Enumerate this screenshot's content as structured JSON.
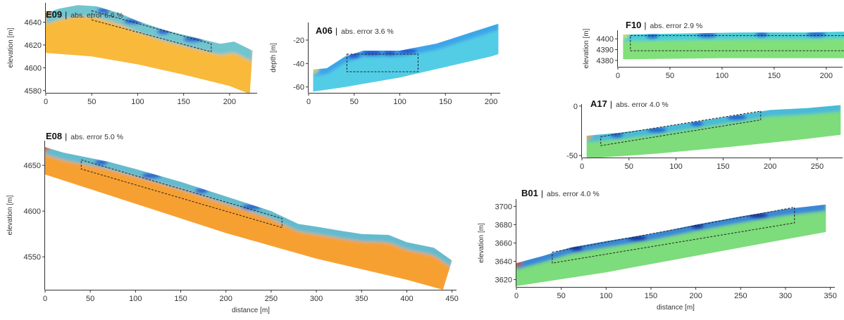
{
  "chart_data": [
    {
      "type": "heatmap",
      "panel": "E09",
      "title": "E09",
      "error_label": "abs. error 6.6 %",
      "xlabel": "",
      "ylabel": "elevation [m]",
      "xlim": [
        0,
        230
      ],
      "ylim": [
        4578,
        4657
      ],
      "xticks": [
        0,
        50,
        100,
        150,
        200
      ],
      "yticks": [
        4580,
        4600,
        4620,
        4640
      ],
      "top_profile": [
        [
          0,
          4648
        ],
        [
          15,
          4652
        ],
        [
          35,
          4655
        ],
        [
          55,
          4654
        ],
        [
          80,
          4648
        ],
        [
          100,
          4641
        ],
        [
          130,
          4633
        ],
        [
          160,
          4627
        ],
        [
          190,
          4621
        ],
        [
          205,
          4623
        ],
        [
          220,
          4617
        ],
        [
          225,
          4615
        ]
      ],
      "bottom_profile": [
        [
          0,
          4613
        ],
        [
          50,
          4610
        ],
        [
          100,
          4603
        ],
        [
          150,
          4594
        ],
        [
          200,
          4584
        ],
        [
          222,
          4577
        ]
      ],
      "target_box": {
        "x": [
          50,
          180
        ],
        "y_top": [
          4650,
          4621
        ],
        "y_bottom": [
          4642,
          4614
        ]
      },
      "colors": {
        "background": "#f9b93a",
        "surface": "#59c7ea",
        "anomaly": "#1b4fcf",
        "edge": "#f08a1c"
      }
    },
    {
      "type": "heatmap",
      "panel": "A06",
      "title": "A06",
      "error_label": "abs. error 3.6 %",
      "xlabel": "",
      "ylabel": "depth [m]",
      "xlim": [
        0,
        210
      ],
      "ylim": [
        -65,
        -5
      ],
      "xticks": [
        0,
        50,
        100,
        150,
        200
      ],
      "yticks": [
        -20,
        -40,
        -60
      ],
      "top_profile": [
        [
          5,
          -45
        ],
        [
          20,
          -44
        ],
        [
          40,
          -34
        ],
        [
          60,
          -29
        ],
        [
          100,
          -29
        ],
        [
          140,
          -23
        ],
        [
          180,
          -13
        ],
        [
          208,
          -6
        ]
      ],
      "bottom_profile": [
        [
          5,
          -64
        ],
        [
          40,
          -60
        ],
        [
          100,
          -52
        ],
        [
          150,
          -43
        ],
        [
          200,
          -34
        ],
        [
          210,
          -32
        ]
      ],
      "target_box": {
        "x": [
          42,
          120
        ],
        "y_top": [
          -32,
          -32
        ],
        "y_bottom": [
          -47,
          -47
        ]
      },
      "colors": {
        "background": "#52cde6",
        "surface": "#3a9ee8",
        "anomaly": "#2244cc",
        "edge": "#f6e040"
      }
    },
    {
      "type": "heatmap",
      "panel": "F10",
      "title": "F10",
      "error_label": "abs. error 2.9 %",
      "xlabel": "",
      "ylabel": "elevation [m]",
      "xlim": [
        0,
        240
      ],
      "ylim": [
        4374,
        4408
      ],
      "xticks": [
        0,
        50,
        100,
        150,
        200
      ],
      "yticks": [
        4400,
        4390,
        4380
      ],
      "top_profile": [
        [
          5,
          4404
        ],
        [
          60,
          4405
        ],
        [
          120,
          4406
        ],
        [
          180,
          4406
        ],
        [
          235,
          4407
        ]
      ],
      "bottom_profile": [
        [
          5,
          4381
        ],
        [
          100,
          4382
        ],
        [
          235,
          4382
        ]
      ],
      "target_box": {
        "x": [
          12,
          222
        ],
        "y_top": [
          4403,
          4403
        ],
        "y_bottom": [
          4389,
          4389
        ]
      },
      "colors": {
        "background": "#82e07a",
        "surface": "#45c8e8",
        "anomaly": "#1b4fcf",
        "edge": "#f1e346"
      }
    },
    {
      "type": "heatmap",
      "panel": "A17",
      "title": "A17",
      "error_label": "abs. error 4.0 %",
      "xlabel": "",
      "ylabel": "",
      "xlim": [
        0,
        280
      ],
      "ylim": [
        -52,
        2
      ],
      "xticks": [
        0,
        50,
        100,
        150,
        200,
        250
      ],
      "yticks": [
        0,
        -50
      ],
      "top_profile": [
        [
          5,
          -30
        ],
        [
          40,
          -27
        ],
        [
          80,
          -22
        ],
        [
          120,
          -16
        ],
        [
          160,
          -10
        ],
        [
          200,
          -4
        ],
        [
          240,
          -2
        ],
        [
          275,
          1
        ]
      ],
      "bottom_profile": [
        [
          5,
          -53
        ],
        [
          80,
          -48
        ],
        [
          160,
          -41
        ],
        [
          240,
          -33
        ],
        [
          275,
          -29
        ]
      ],
      "target_box": {
        "x": [
          20,
          190
        ],
        "y_top": [
          -31,
          -5
        ],
        "y_bottom": [
          -40,
          -14
        ]
      },
      "colors": {
        "background": "#7edc7a",
        "surface": "#3fb4e8",
        "anomaly": "#1b4fcf",
        "edge": "#f6a62e"
      }
    },
    {
      "type": "heatmap",
      "panel": "E08",
      "title": "E08",
      "error_label": "abs. error 5.0 %",
      "xlabel": "distance [m]",
      "ylabel": "elevation [m]",
      "xlim": [
        0,
        455
      ],
      "ylim": [
        4514,
        4677
      ],
      "xticks": [
        0,
        50,
        100,
        150,
        200,
        250,
        300,
        350,
        400,
        450
      ],
      "yticks": [
        4550,
        4600,
        4650
      ],
      "top_profile": [
        [
          0,
          4670
        ],
        [
          20,
          4664
        ],
        [
          40,
          4660
        ],
        [
          70,
          4654
        ],
        [
          100,
          4646
        ],
        [
          150,
          4632
        ],
        [
          200,
          4616
        ],
        [
          250,
          4600
        ],
        [
          280,
          4586
        ],
        [
          300,
          4583
        ],
        [
          330,
          4578
        ],
        [
          350,
          4575
        ],
        [
          380,
          4574
        ],
        [
          400,
          4566
        ],
        [
          430,
          4560
        ],
        [
          450,
          4546
        ]
      ],
      "bottom_profile": [
        [
          0,
          4640
        ],
        [
          100,
          4608
        ],
        [
          200,
          4576
        ],
        [
          300,
          4548
        ],
        [
          400,
          4525
        ],
        [
          440,
          4514
        ]
      ],
      "target_box": {
        "x": [
          40,
          262
        ],
        "y_top": [
          4656,
          4592
        ],
        "y_bottom": [
          4646,
          4582
        ]
      },
      "colors": {
        "background": "#f7a032",
        "surface": "#4bc0ea",
        "anomaly": "#1b4fcf",
        "edge": "#e2552a"
      }
    },
    {
      "type": "heatmap",
      "panel": "B01",
      "title": "B01",
      "error_label": "abs. error 4.0 %",
      "xlabel": "distance [m]",
      "ylabel": "elevation [m]",
      "xlim": [
        0,
        355
      ],
      "ylim": [
        3612,
        3708
      ],
      "xticks": [
        0,
        50,
        100,
        150,
        200,
        250,
        300,
        350
      ],
      "yticks": [
        3620,
        3640,
        3660,
        3680,
        3700
      ],
      "top_profile": [
        [
          0,
          3638
        ],
        [
          30,
          3646
        ],
        [
          60,
          3655
        ],
        [
          100,
          3662
        ],
        [
          150,
          3670
        ],
        [
          200,
          3680
        ],
        [
          250,
          3689
        ],
        [
          300,
          3697
        ],
        [
          345,
          3702
        ]
      ],
      "bottom_profile": [
        [
          0,
          3613
        ],
        [
          100,
          3628
        ],
        [
          200,
          3646
        ],
        [
          300,
          3664
        ],
        [
          345,
          3672
        ]
      ],
      "target_box": {
        "x": [
          40,
          310
        ],
        "y_top": [
          3650,
          3699
        ],
        "y_bottom": [
          3638,
          3682
        ]
      },
      "colors": {
        "background": "#7ddc7b",
        "surface": "#2e79e4",
        "anomaly": "#10229c",
        "edge": "#e4412a"
      }
    }
  ]
}
